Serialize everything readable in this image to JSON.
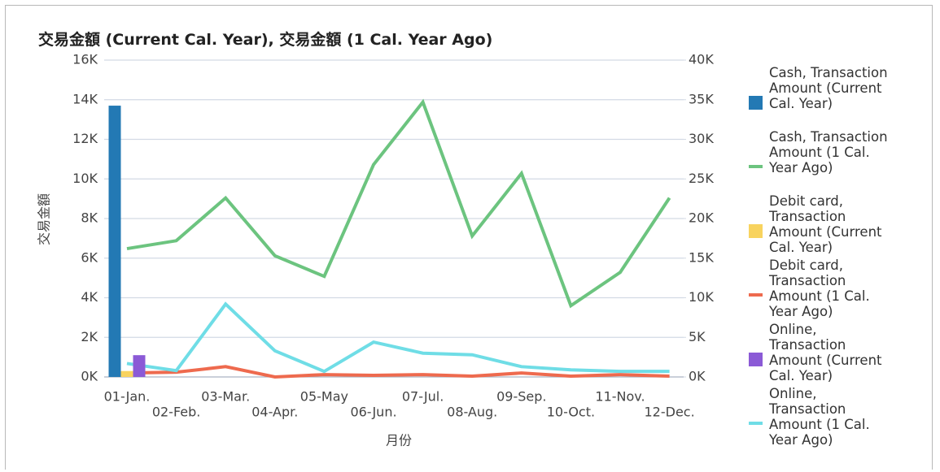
{
  "chart_data": {
    "type": "combo",
    "title": "交易金額 (Current Cal. Year), 交易金額 (1 Cal. Year Ago)",
    "y_label": "交易金額",
    "x_label": "月份",
    "categories": [
      "01-Jan.",
      "02-Feb.",
      "03-Mar.",
      "04-Apr.",
      "05-May",
      "06-Jun.",
      "07-Jul.",
      "08-Aug.",
      "09-Sep.",
      "10-Oct.",
      "11-Nov.",
      "12-Dec."
    ],
    "ylim": [
      0,
      16000
    ],
    "yticks": [
      {
        "value": 0,
        "label": "0K"
      },
      {
        "value": 2000,
        "label": "2K"
      },
      {
        "value": 4000,
        "label": "4K"
      },
      {
        "value": 6000,
        "label": "6K"
      },
      {
        "value": 8000,
        "label": "8K"
      },
      {
        "value": 10000,
        "label": "10K"
      },
      {
        "value": 12000,
        "label": "12K"
      },
      {
        "value": 14000,
        "label": "14K"
      },
      {
        "value": 16000,
        "label": "16K"
      }
    ],
    "y2lim": [
      0,
      40000
    ],
    "y2ticks": [
      {
        "value": 0,
        "label": "0K"
      },
      {
        "value": 5000,
        "label": "5K"
      },
      {
        "value": 10000,
        "label": "10K"
      },
      {
        "value": 15000,
        "label": "15K"
      },
      {
        "value": 20000,
        "label": "20K"
      },
      {
        "value": 25000,
        "label": "25K"
      },
      {
        "value": 30000,
        "label": "30K"
      },
      {
        "value": 35000,
        "label": "35K"
      },
      {
        "value": 40000,
        "label": "40K"
      }
    ],
    "grid": true,
    "legend": "right",
    "series": [
      {
        "name": "Cash, Transaction Amount (Current Cal. Year)",
        "type": "bar",
        "color": "#2379b4",
        "values": [
          13700,
          null,
          null,
          null,
          null,
          null,
          null,
          null,
          null,
          null,
          null,
          null
        ]
      },
      {
        "name": "Cash, Transaction Amount (1 Cal. Year Ago)",
        "type": "line",
        "axis": "y2",
        "color": "#6cc47f",
        "values": [
          16200,
          17200,
          22600,
          15300,
          12700,
          26800,
          34700,
          17800,
          25700,
          9000,
          13200,
          22600
        ]
      },
      {
        "name": "Debit card, Transaction Amount (Current Cal. Year)",
        "type": "bar",
        "color": "#f8d35e",
        "values": [
          300,
          null,
          null,
          null,
          null,
          null,
          null,
          null,
          null,
          null,
          null,
          null
        ]
      },
      {
        "name": "Debit card, Transaction Amount (1 Cal. Year Ago)",
        "type": "line",
        "axis": "y2",
        "color": "#ee6a4e",
        "values": [
          500,
          600,
          1300,
          0,
          300,
          200,
          300,
          100,
          500,
          100,
          300,
          100
        ]
      },
      {
        "name": "Online, Transaction Amount (Current Cal. Year)",
        "type": "bar",
        "color": "#8b5ad6",
        "values": [
          1100,
          null,
          null,
          null,
          null,
          null,
          null,
          null,
          null,
          null,
          null,
          null
        ]
      },
      {
        "name": "Online, Transaction Amount (1 Cal. Year Ago)",
        "type": "line",
        "axis": "y2",
        "color": "#6fdde6",
        "values": [
          1700,
          800,
          9200,
          3300,
          700,
          4400,
          3000,
          2800,
          1300,
          900,
          700,
          700
        ]
      }
    ]
  }
}
